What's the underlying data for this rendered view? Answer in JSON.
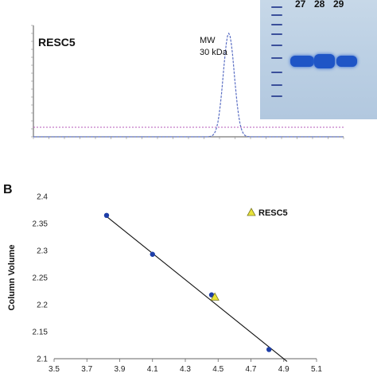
{
  "panel_a": {
    "protein_label": "RESC5",
    "peak_label_line1": "MW",
    "peak_label_line2": "30 kDa",
    "gel_lane_labels": [
      "27",
      "28",
      "29"
    ],
    "colors": {
      "trace": "#5b6fc4",
      "baseline": "#b45ab8",
      "gel_band": "#1f55c6"
    }
  },
  "panel_b": {
    "panel_letter": "B",
    "legend_label": "RESC5"
  },
  "chart_data": [
    {
      "type": "line",
      "title": "RESC5",
      "annotation": "MW 30 kDa",
      "description_axes": "chromatogram with unlabeled axes",
      "series": [
        {
          "name": "",
          "x": [
            0,
            40,
            60,
            70,
            75,
            80,
            85,
            90,
            100,
            127
          ],
          "values": [
            0,
            0,
            0,
            5,
            60,
            130,
            60,
            5,
            0,
            0
          ]
        }
      ],
      "xlim": [
        0,
        127
      ],
      "ylim": [
        0,
        140
      ]
    },
    {
      "type": "scatter",
      "xlabel": "",
      "ylabel": "Column Volume",
      "xlim": [
        3.5,
        5.1
      ],
      "ylim": [
        2.1,
        2.4
      ],
      "x_ticks": [
        "3.5",
        "3.7",
        "3.9",
        "4.1",
        "4.3",
        "4.5",
        "4.7",
        "4.9",
        "5.1"
      ],
      "y_ticks": [
        "2.1",
        "2.15",
        "2.2",
        "2.25",
        "2.3",
        "2.35",
        "2.4"
      ],
      "series": [
        {
          "name": "",
          "marker": "circle",
          "color": "#1d3ea8",
          "x": [
            3.82,
            4.1,
            4.46,
            4.81
          ],
          "y": [
            2.365,
            2.293,
            2.218,
            2.117
          ]
        },
        {
          "name": "RESC5",
          "marker": "triangle",
          "color": "#e8e23a",
          "x": [
            4.48
          ],
          "y": [
            2.214
          ]
        }
      ],
      "trendline": {
        "x": [
          3.82,
          4.92
        ],
        "y": [
          2.363,
          2.095
        ]
      },
      "legend": "top-right",
      "grid": false
    }
  ]
}
